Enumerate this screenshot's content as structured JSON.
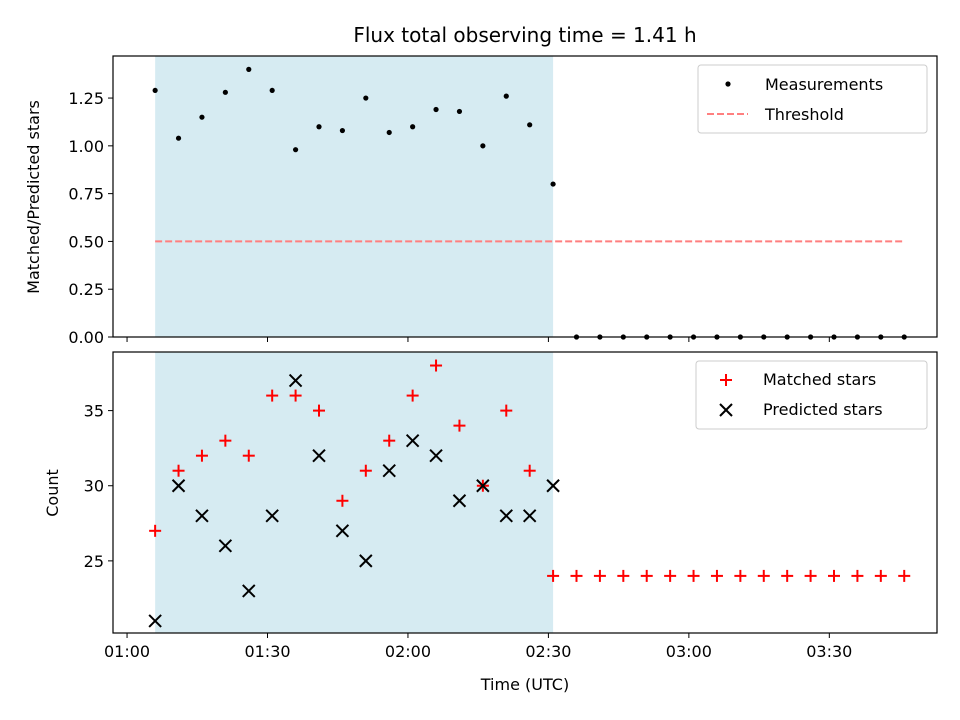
{
  "chart_data": [
    {
      "type": "scatter",
      "title": "Flux total observing time = 1.41 h",
      "xlabel": "",
      "ylabel": "Matched/Predicted stars",
      "x_unit": "time (UTC)",
      "x_tick_labels": [
        "01:00",
        "01:30",
        "02:00",
        "02:30",
        "03:00",
        "03:30"
      ],
      "ylim": [
        0,
        1.47
      ],
      "y_ticks": [
        0.0,
        0.25,
        0.5,
        0.75,
        1.0,
        1.25
      ],
      "y_tick_labels": [
        "0.00",
        "0.25",
        "0.50",
        "0.75",
        "1.00",
        "1.25"
      ],
      "grid": false,
      "legend_position": "top-right",
      "shaded_region": {
        "x_start": "01:06",
        "x_end": "02:31",
        "color": "#add8e6"
      },
      "series": [
        {
          "name": "Measurements",
          "kind": "points",
          "color": "#000000",
          "x": [
            "01:06",
            "01:11",
            "01:16",
            "01:21",
            "01:26",
            "01:31",
            "01:36",
            "01:41",
            "01:46",
            "01:51",
            "01:56",
            "02:01",
            "02:06",
            "02:11",
            "02:16",
            "02:21",
            "02:26",
            "02:31",
            "02:36",
            "02:41",
            "02:46",
            "02:51",
            "02:56",
            "03:01",
            "03:06",
            "03:11",
            "03:16",
            "03:21",
            "03:26",
            "03:31",
            "03:36",
            "03:41",
            "03:46"
          ],
          "y": [
            1.29,
            1.04,
            1.15,
            1.28,
            1.4,
            1.29,
            0.98,
            1.1,
            1.08,
            1.25,
            1.07,
            1.1,
            1.19,
            1.18,
            1.0,
            1.26,
            1.11,
            0.8,
            0,
            0,
            0,
            0,
            0,
            0,
            0,
            0,
            0,
            0,
            0,
            0,
            0,
            0,
            0
          ]
        },
        {
          "name": "Threshold",
          "kind": "dashed-line",
          "color": "#ff7f7f",
          "x": [
            "01:06",
            "03:46"
          ],
          "y": [
            0.5,
            0.5
          ]
        }
      ]
    },
    {
      "type": "scatter",
      "title": "",
      "xlabel": "Time (UTC)",
      "ylabel": "Count",
      "x_tick_labels": [
        "01:00",
        "01:30",
        "02:00",
        "02:30",
        "03:00",
        "03:30"
      ],
      "ylim": [
        20.2,
        38.9
      ],
      "y_ticks": [
        25,
        30,
        35
      ],
      "y_tick_labels": [
        "25",
        "30",
        "35"
      ],
      "grid": false,
      "legend_position": "top-right",
      "shaded_region": {
        "x_start": "01:06",
        "x_end": "02:31",
        "color": "#add8e6"
      },
      "series": [
        {
          "name": "Matched stars",
          "marker": "plus",
          "color": "#ff0000",
          "x": [
            "01:06",
            "01:11",
            "01:16",
            "01:21",
            "01:26",
            "01:31",
            "01:36",
            "01:41",
            "01:46",
            "01:51",
            "01:56",
            "02:01",
            "02:06",
            "02:11",
            "02:16",
            "02:21",
            "02:26",
            "02:31",
            "02:36",
            "02:41",
            "02:46",
            "02:51",
            "02:56",
            "03:01",
            "03:06",
            "03:11",
            "03:16",
            "03:21",
            "03:26",
            "03:31",
            "03:36",
            "03:41",
            "03:46"
          ],
          "y": [
            27,
            31,
            32,
            33,
            32,
            36,
            36,
            35,
            29,
            31,
            33,
            36,
            38,
            34,
            30,
            35,
            31,
            24,
            24,
            24,
            24,
            24,
            24,
            24,
            24,
            24,
            24,
            24,
            24,
            24,
            24,
            24,
            24
          ]
        },
        {
          "name": "Predicted stars",
          "marker": "x",
          "color": "#000000",
          "x": [
            "01:06",
            "01:11",
            "01:16",
            "01:21",
            "01:26",
            "01:31",
            "01:36",
            "01:41",
            "01:46",
            "01:51",
            "01:56",
            "02:01",
            "02:06",
            "02:11",
            "02:16",
            "02:21",
            "02:26",
            "02:31"
          ],
          "y": [
            21,
            30,
            28,
            26,
            23,
            28,
            37,
            32,
            27,
            25,
            31,
            33,
            32,
            29,
            30,
            28,
            28,
            30
          ]
        }
      ]
    }
  ]
}
